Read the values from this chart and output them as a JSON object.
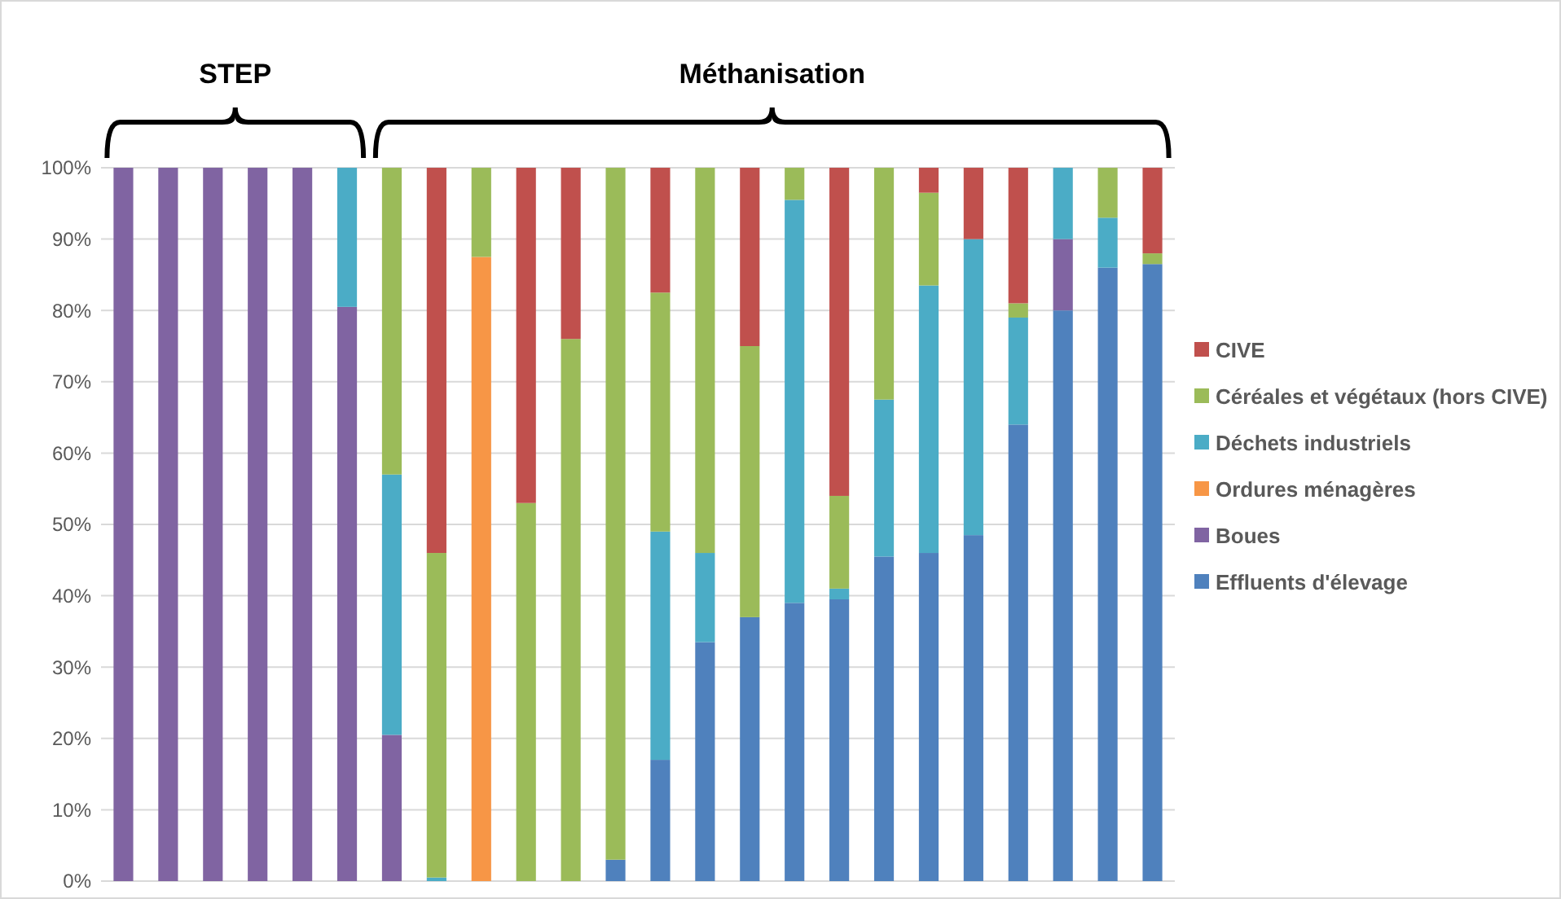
{
  "chart_data": {
    "type": "bar",
    "stacked": true,
    "categories": [
      null,
      null,
      null,
      null,
      null,
      null,
      null,
      null,
      null,
      null,
      null,
      null,
      null,
      null,
      null,
      null,
      null,
      null,
      null,
      null,
      null,
      null,
      null,
      null
    ],
    "series": [
      {
        "name": "Effluents d'élevage",
        "color": "#4f81bd",
        "values": [
          0,
          0,
          0,
          0,
          0,
          0,
          0,
          0,
          0,
          0,
          0,
          3,
          17,
          33.5,
          37,
          39,
          39.5,
          45.5,
          46,
          48.5,
          64,
          80,
          86,
          86.5
        ]
      },
      {
        "name": "Boues",
        "color": "#8064a2",
        "values": [
          100,
          100,
          100,
          100,
          100,
          80.5,
          20.5,
          0,
          0,
          0,
          0,
          0,
          0,
          0,
          0,
          0,
          0,
          0,
          0,
          0,
          0,
          10,
          0,
          0
        ]
      },
      {
        "name": "Ordures ménagères",
        "color": "#f79646",
        "values": [
          0,
          0,
          0,
          0,
          0,
          0,
          0,
          0,
          87.5,
          0,
          0,
          0,
          0,
          0,
          0,
          0,
          0,
          0,
          0,
          0,
          0,
          0,
          0,
          0
        ]
      },
      {
        "name": "Déchets industriels",
        "color": "#4bacc6",
        "values": [
          0,
          0,
          0,
          0,
          0,
          19.5,
          36.5,
          0.5,
          0,
          0,
          0,
          0,
          32,
          12.5,
          0,
          56.5,
          1.5,
          22,
          37.5,
          41.5,
          15,
          10,
          7,
          0
        ]
      },
      {
        "name": "Céréales et végétaux (hors CIVE)",
        "color": "#9bbb59",
        "values": [
          0,
          0,
          0,
          0,
          0,
          0,
          43,
          45.5,
          12.5,
          53,
          76,
          97,
          33.5,
          54,
          38,
          4.5,
          13,
          32.5,
          13,
          0,
          2,
          0,
          7,
          1.5
        ]
      },
      {
        "name": "CIVE",
        "color": "#c0504d",
        "values": [
          0,
          0,
          0,
          0,
          0,
          0,
          0,
          54,
          0,
          47,
          24,
          0,
          17.5,
          0,
          25,
          0,
          46,
          0,
          3.5,
          10,
          19,
          0,
          0,
          12
        ]
      }
    ],
    "ylim": [
      0,
      100
    ],
    "yticks": [
      {
        "value": 0,
        "label": "0%"
      },
      {
        "value": 10,
        "label": "10%"
      },
      {
        "value": 20,
        "label": "20%"
      },
      {
        "value": 30,
        "label": "30%"
      },
      {
        "value": 40,
        "label": "40%"
      },
      {
        "value": 50,
        "label": "50%"
      },
      {
        "value": 60,
        "label": "60%"
      },
      {
        "value": 70,
        "label": "70%"
      },
      {
        "value": 80,
        "label": "80%"
      },
      {
        "value": 90,
        "label": "90%"
      },
      {
        "value": 100,
        "label": "100%"
      }
    ],
    "grid": "y",
    "legend": "right",
    "annotations": [
      "STEP",
      "Méthanisation"
    ]
  }
}
